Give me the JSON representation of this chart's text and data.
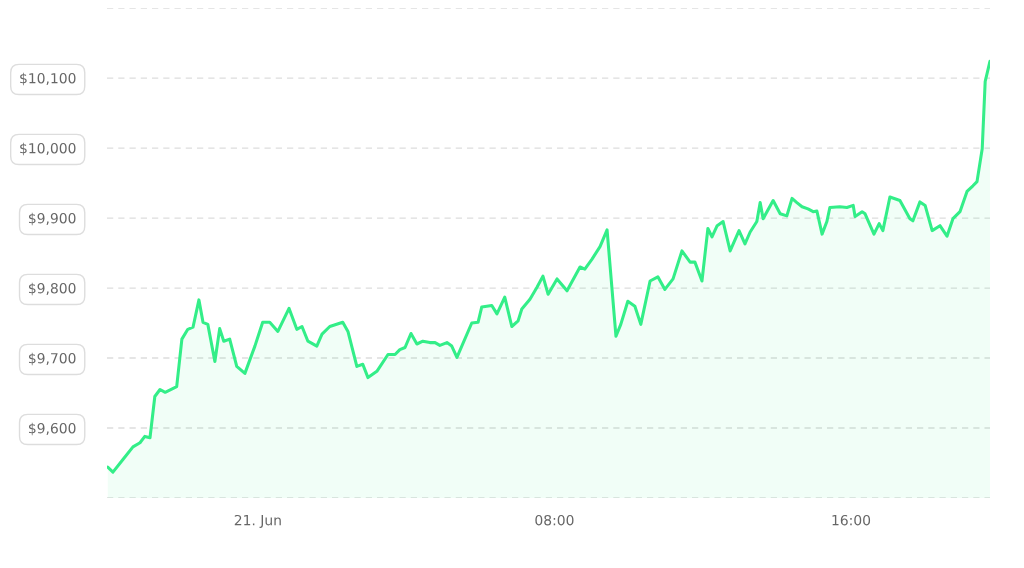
{
  "chart_data": {
    "type": "area",
    "color": "#33ee88",
    "x": [
      -4.05,
      -3.91,
      -3.64,
      -3.37,
      -3.18,
      -3.05,
      -2.91,
      -2.78,
      -2.64,
      -2.5,
      -2.19,
      -2.05,
      -1.89,
      -1.75,
      -1.59,
      -1.48,
      -1.35,
      -1.16,
      -1.03,
      -0.92,
      -0.76,
      -0.57,
      -0.35,
      -0.08,
      0.13,
      0.32,
      0.54,
      0.84,
      1.05,
      1.19,
      1.35,
      1.59,
      1.73,
      1.94,
      2.29,
      2.43,
      2.67,
      2.83,
      2.97,
      3.21,
      3.51,
      3.7,
      3.83,
      3.97,
      4.13,
      4.29,
      4.45,
      4.64,
      4.78,
      4.91,
      5.1,
      5.23,
      5.37,
      5.77,
      5.94,
      6.04,
      6.31,
      6.45,
      6.66,
      6.85,
      7.02,
      7.12,
      7.34,
      7.53,
      7.69,
      7.83,
      8.07,
      8.34,
      8.69,
      8.82,
      9.01,
      9.23,
      9.42,
      9.66,
      9.79,
      9.98,
      10.17,
      10.33,
      10.58,
      10.79,
      10.98,
      11.2,
      11.44,
      11.66,
      11.79,
      11.98,
      12.14,
      12.25,
      12.39,
      12.55,
      12.74,
      12.98,
      13.14,
      13.28,
      13.46,
      13.55,
      13.63,
      13.9,
      14.09,
      14.27,
      14.41,
      14.54,
      14.68,
      14.84,
      14.98,
      15.08,
      15.22,
      15.35,
      15.43,
      15.7,
      15.89,
      16.06,
      16.11,
      16.3,
      16.38,
      16.62,
      16.76,
      16.86,
      17.05,
      17.32,
      17.59,
      17.67,
      17.86,
      18.0,
      18.19,
      18.4,
      18.59,
      18.75,
      18.94,
      19.13,
      19.29,
      19.4,
      19.54,
      19.62,
      19.75
    ],
    "values": [
      9544,
      9537,
      9555,
      9573,
      9579,
      9588,
      9586,
      9645,
      9655,
      9651,
      9659,
      9727,
      9741,
      9744,
      9783,
      9751,
      9748,
      9695,
      9742,
      9724,
      9727,
      9688,
      9678,
      9717,
      9751,
      9751,
      9738,
      9771,
      9741,
      9745,
      9724,
      9717,
      9734,
      9745,
      9751,
      9738,
      9688,
      9691,
      9672,
      9681,
      9705,
      9705,
      9712,
      9715,
      9735,
      9720,
      9724,
      9722,
      9722,
      9718,
      9722,
      9717,
      9701,
      9750,
      9751,
      9773,
      9775,
      9763,
      9787,
      9745,
      9753,
      9770,
      9784,
      9801,
      9817,
      9791,
      9813,
      9796,
      9830,
      9827,
      9841,
      9859,
      9883,
      9731,
      9748,
      9781,
      9774,
      9748,
      9810,
      9816,
      9798,
      9813,
      9853,
      9837,
      9837,
      9810,
      9885,
      9873,
      9889,
      9895,
      9853,
      9882,
      9863,
      9880,
      9895,
      9922,
      9899,
      9925,
      9906,
      9903,
      9928,
      9922,
      9916,
      9913,
      9909,
      9910,
      9877,
      9895,
      9915,
      9916,
      9915,
      9918,
      9902,
      9909,
      9906,
      9877,
      9892,
      9882,
      9930,
      9925,
      9899,
      9896,
      9923,
      9918,
      9882,
      9889,
      9874,
      9899,
      9909,
      9938,
      9946,
      9952,
      9999,
      10095,
      10124
    ],
    "xlim": [
      -4.07,
      19.75
    ],
    "xticks": [
      {
        "value": 0,
        "label": "21. Jun"
      },
      {
        "value": 8,
        "label": "08:00"
      },
      {
        "value": 16,
        "label": "16:00"
      }
    ],
    "ylim": [
      9500,
      10200
    ],
    "yticks": [
      {
        "value": 9500,
        "label": null
      },
      {
        "value": 9600,
        "label": "$9,600"
      },
      {
        "value": 9700,
        "label": "$9,700"
      },
      {
        "value": 9800,
        "label": "$9,800"
      },
      {
        "value": 9900,
        "label": "$9,900"
      },
      {
        "value": 10000,
        "label": "$10,000"
      },
      {
        "value": 10100,
        "label": "$10,100"
      },
      {
        "value": 10200,
        "label": null
      }
    ],
    "grid": "y",
    "line_style": "solid"
  }
}
